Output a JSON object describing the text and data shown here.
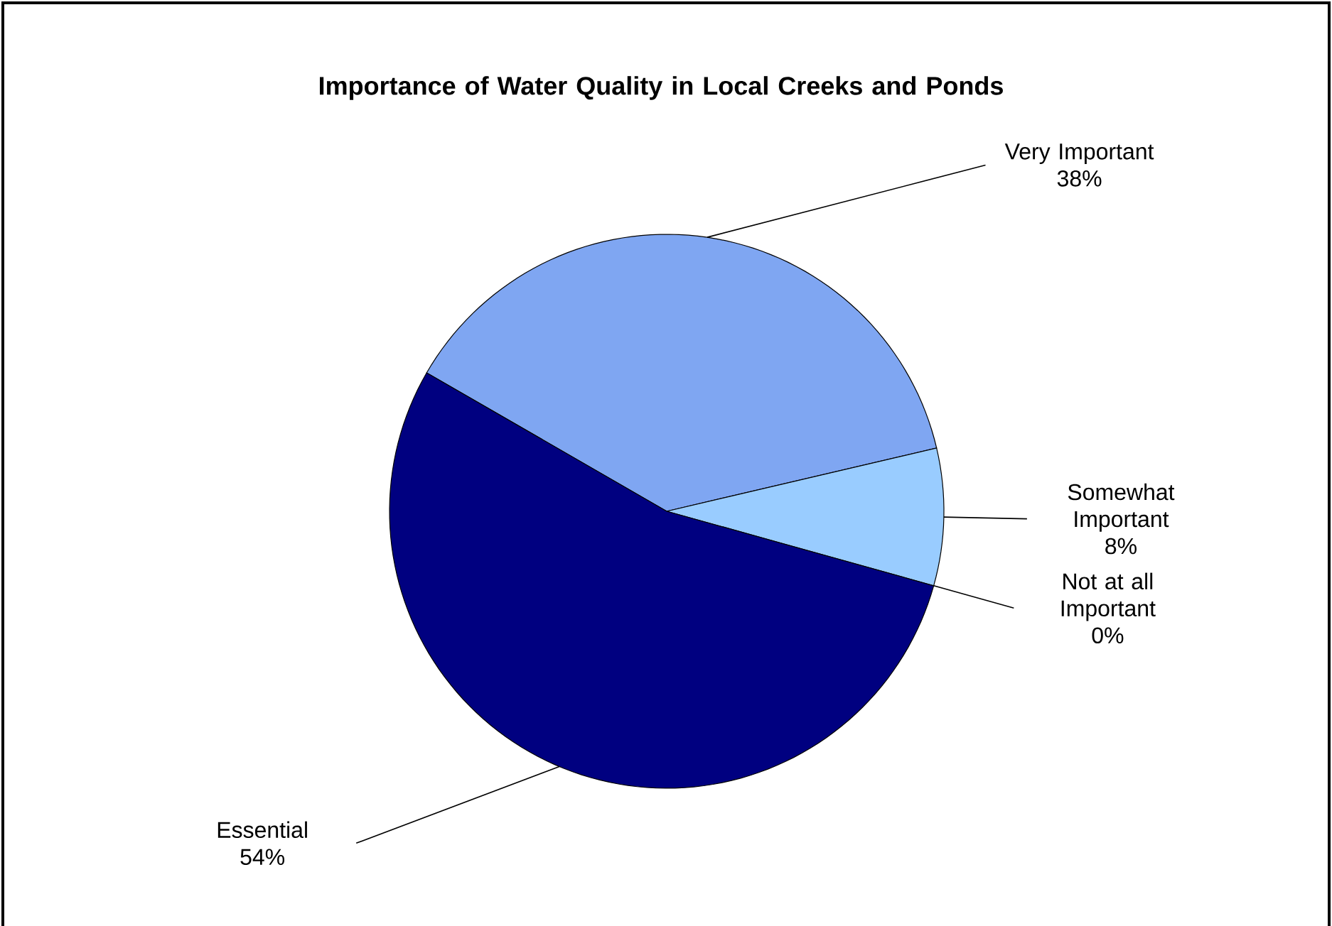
{
  "chart_data": {
    "type": "pie",
    "title": "Importance of Water Quality in Local Creeks and Ponds",
    "categories": [
      "Very Important",
      "Somewhat Important",
      "Not at all Important",
      "Essential"
    ],
    "values": [
      38,
      8,
      0,
      54
    ],
    "value_labels": [
      "38%",
      "8%",
      "0%",
      "54%"
    ],
    "colors": [
      "#7fa6f2",
      "#99ccff",
      "#ffffff",
      "#000080"
    ]
  }
}
